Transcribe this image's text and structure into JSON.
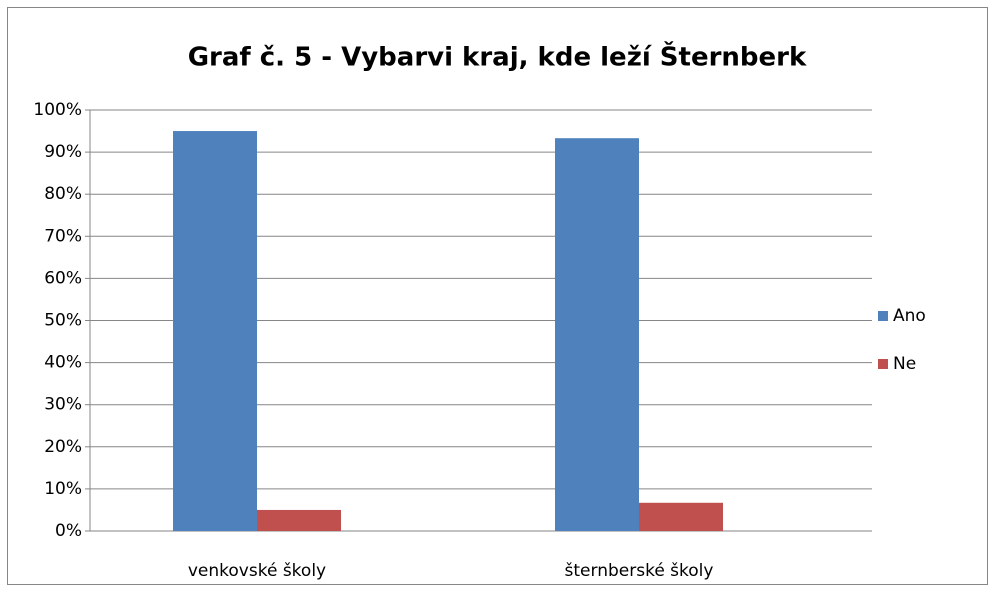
{
  "chart_data": {
    "type": "bar",
    "title": "Graf č. 5 - Vybarvi kraj, kde leží Šternberk",
    "categories": [
      "venkovské školy",
      "šternberské školy"
    ],
    "series": [
      {
        "name": "Ano",
        "color": "#4f81bd",
        "values": [
          95,
          93.3
        ]
      },
      {
        "name": "Ne",
        "color": "#c0504d",
        "values": [
          5,
          6.7
        ]
      }
    ],
    "ylim": [
      0,
      100
    ],
    "yticks": [
      {
        "value": 0,
        "label": "0%"
      },
      {
        "value": 10,
        "label": "10%"
      },
      {
        "value": 20,
        "label": "20%"
      },
      {
        "value": 30,
        "label": "30%"
      },
      {
        "value": 40,
        "label": "40%"
      },
      {
        "value": 50,
        "label": "50%"
      },
      {
        "value": 60,
        "label": "60%"
      },
      {
        "value": 70,
        "label": "70%"
      },
      {
        "value": 80,
        "label": "80%"
      },
      {
        "value": 90,
        "label": "90%"
      },
      {
        "value": 100,
        "label": "100%"
      }
    ],
    "grid": true,
    "legend": "right"
  }
}
